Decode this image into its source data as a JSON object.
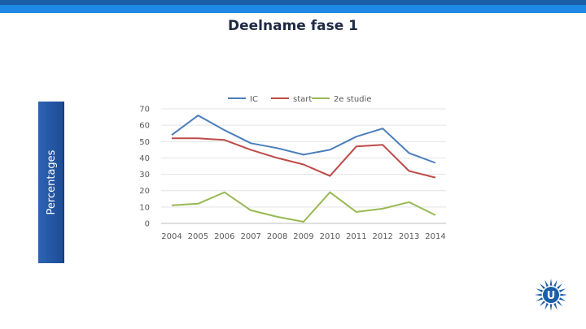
{
  "slide": {
    "title": "Deelname fase 1",
    "ylabel": "Percentages"
  },
  "colors": {
    "top_bar": "#1a5fa8",
    "ylabel_box": "#2d63b4",
    "logo": "#1a5fa8"
  },
  "logo": {
    "icon": "university-sun-logo-icon",
    "letter": "U"
  },
  "chart_data": {
    "type": "line",
    "title": "",
    "xlabel": "",
    "ylabel": "Percentages",
    "ylim": [
      0,
      70
    ],
    "yticks": [
      0,
      10,
      20,
      30,
      40,
      50,
      60,
      70
    ],
    "categories": [
      "2004",
      "2005",
      "2006",
      "2007",
      "2008",
      "2009",
      "2010",
      "2011",
      "2012",
      "2013",
      "2014"
    ],
    "grid": true,
    "legend": "top",
    "series": [
      {
        "name": "IC",
        "color": "#4a7ebb",
        "values": [
          54,
          66,
          57,
          49,
          46,
          42,
          45,
          53,
          58,
          43,
          37
        ]
      },
      {
        "name": "start",
        "color": "#be4b48",
        "values": [
          52,
          52,
          51,
          45,
          40,
          36,
          29,
          47,
          48,
          32,
          28
        ]
      },
      {
        "name": "2e studie",
        "color": "#98b954",
        "values": [
          11,
          12,
          19,
          8,
          4,
          1,
          19,
          7,
          9,
          13,
          5
        ]
      }
    ]
  }
}
